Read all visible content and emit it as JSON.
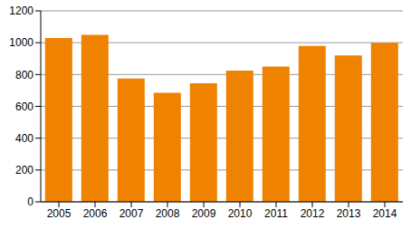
{
  "chart_data": {
    "type": "bar",
    "categories": [
      "2005",
      "2006",
      "2007",
      "2008",
      "2009",
      "2010",
      "2011",
      "2012",
      "2013",
      "2014"
    ],
    "values": [
      1030,
      1050,
      775,
      685,
      745,
      825,
      850,
      980,
      920,
      1000
    ],
    "color": "#ef8200",
    "ylim": [
      0,
      1200
    ],
    "yticks": [
      0,
      200,
      400,
      600,
      800,
      1000,
      1200
    ],
    "grid": true
  }
}
